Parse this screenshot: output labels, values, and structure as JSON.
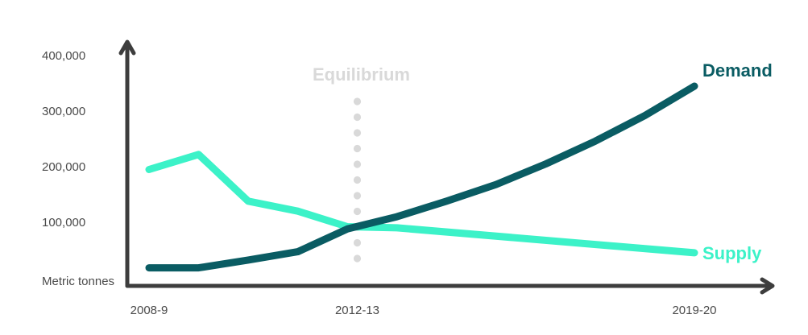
{
  "chart_data": {
    "type": "line",
    "title": "",
    "xlabel": "",
    "ylabel": "Metric tonnes",
    "x_tick_labels": [
      "2008-9",
      "2012-13",
      "2019-20"
    ],
    "y_tick_labels": [
      "100,000",
      "200,000",
      "300,000",
      "400,000"
    ],
    "y_ticks": [
      100000,
      200000,
      300000,
      400000
    ],
    "xlim": [
      0,
      11
    ],
    "ylim": [
      -5000,
      420000
    ],
    "grid": false,
    "series": [
      {
        "name": "Demand",
        "color": "#0a5c63",
        "x": [
          0,
          1,
          2,
          3,
          4,
          5,
          6,
          7,
          8,
          9,
          10,
          11
        ],
        "values": [
          18000,
          18000,
          32000,
          47000,
          88000,
          110000,
          138000,
          168000,
          205000,
          246000,
          292000,
          345000
        ]
      },
      {
        "name": "Supply",
        "color": "#3cf2c8",
        "x": [
          0,
          1,
          2,
          3,
          4,
          5,
          11
        ],
        "values": [
          195000,
          222000,
          138000,
          120000,
          92000,
          90000,
          45000
        ]
      }
    ],
    "annotations": [
      {
        "label": "Equilibrium",
        "x": 4.2,
        "style": "dotted-vertical",
        "color": "#d9d9d9"
      }
    ]
  }
}
